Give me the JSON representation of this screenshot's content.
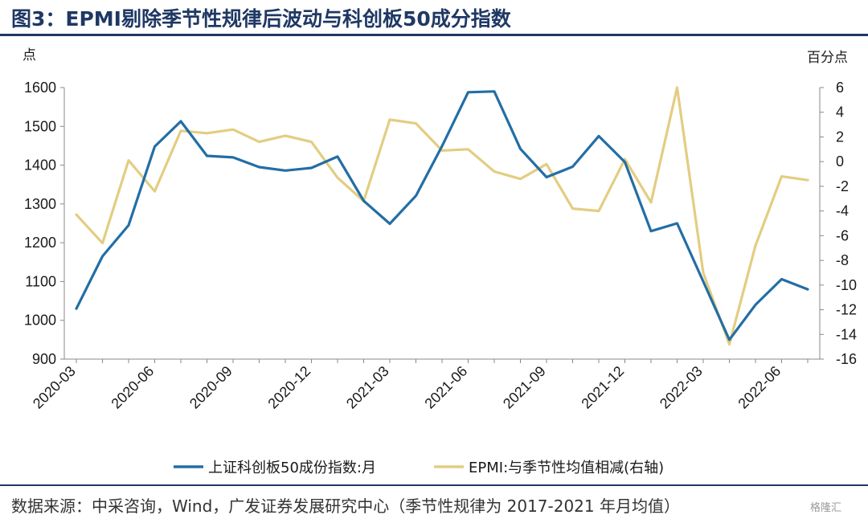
{
  "title": "图3：EPMI剔除季节性规律后波动与科创板50成分指数",
  "footer": {
    "source": "数据来源：中采咨询，Wind，广发证券发展研究中心（季节性规律为 2017-2021 年月均值）",
    "watermark": "格隆汇"
  },
  "colors": {
    "series_1": "#236ea5",
    "series_2": "#e3cd82",
    "title": "#1f3864"
  },
  "chart_data": {
    "type": "line",
    "left_unit": "点",
    "right_unit": "百分点",
    "x": [
      "2020-03",
      "2020-04",
      "2020-05",
      "2020-06",
      "2020-07",
      "2020-08",
      "2020-09",
      "2020-10",
      "2020-11",
      "2020-12",
      "2021-01",
      "2021-02",
      "2021-03",
      "2021-04",
      "2021-05",
      "2021-06",
      "2021-07",
      "2021-08",
      "2021-09",
      "2021-10",
      "2021-11",
      "2021-12",
      "2022-01",
      "2022-02",
      "2022-03",
      "2022-04",
      "2022-05",
      "2022-06",
      "2022-07"
    ],
    "x_tick_labels": [
      "2020-03",
      "2020-06",
      "2020-09",
      "2020-12",
      "2021-03",
      "2021-06",
      "2021-09",
      "2021-12",
      "2022-03",
      "2022-06"
    ],
    "ylim_left": [
      900,
      1600
    ],
    "yticks_left": [
      900,
      1000,
      1100,
      1200,
      1300,
      1400,
      1500,
      1600
    ],
    "ylim_right": [
      -16,
      6
    ],
    "yticks_right": [
      -16,
      -14,
      -12,
      -10,
      -8,
      -6,
      -4,
      -2,
      0,
      2,
      4,
      6
    ],
    "series": [
      {
        "name": "上证科创板50成份指数:月",
        "axis": "left",
        "color": "#236ea5",
        "values": [
          1030,
          1165,
          1245,
          1448,
          1513,
          1424,
          1420,
          1395,
          1386,
          1393,
          1422,
          1308,
          1249,
          1321,
          1449,
          1588,
          1590,
          1442,
          1369,
          1396,
          1475,
          1408,
          1230,
          1250,
          1100,
          950,
          1040,
          1106,
          1080
        ]
      },
      {
        "name": "EPMI:与季节性均值相减(右轴)",
        "axis": "right",
        "color": "#e3cd82",
        "values": [
          -4.3,
          -6.6,
          0.1,
          -2.4,
          2.5,
          2.3,
          2.6,
          1.6,
          2.1,
          1.6,
          -1.3,
          -3.2,
          3.4,
          3.1,
          0.9,
          1.0,
          -0.8,
          -1.4,
          -0.2,
          -3.8,
          -4.0,
          0.2,
          -3.3,
          6.0,
          -9.0,
          -14.8,
          -6.8,
          -1.2,
          -1.5
        ]
      }
    ],
    "grid": false,
    "legend_position": "bottom"
  }
}
